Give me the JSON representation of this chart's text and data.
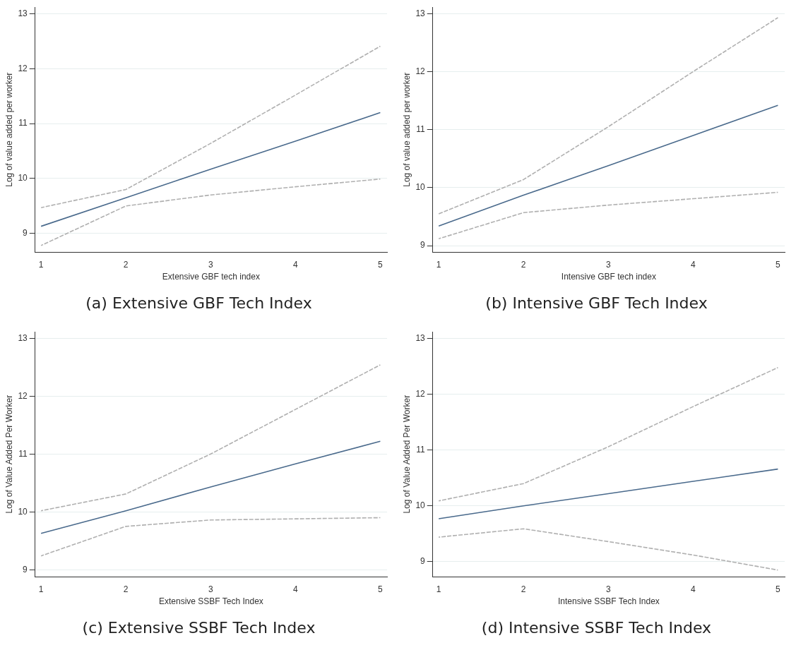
{
  "chart_data": [
    {
      "type": "line",
      "title": "(a) Extensive GBF Tech Index",
      "xlabel": "Extensive GBF tech index",
      "ylabel": "Log of value added per worker",
      "x": [
        1,
        2,
        3,
        4,
        5
      ],
      "xlim": [
        0.93,
        5.08
      ],
      "xticks": [
        1,
        2,
        3,
        4,
        5
      ],
      "ylim": [
        8.66,
        13.12
      ],
      "yticks": [
        9,
        10,
        11,
        12,
        13
      ],
      "grid": "y",
      "legend": false,
      "marker": "none",
      "series": [
        {
          "color": "#4a6a8c",
          "line_style": "solid",
          "values": [
            9.13,
            9.65,
            10.17,
            10.68,
            11.2
          ]
        },
        {
          "color": "#b0b0b0",
          "line_style": "dashed",
          "values": [
            9.47,
            9.8,
            10.64,
            11.52,
            12.41
          ]
        },
        {
          "color": "#b0b0b0",
          "line_style": "dashed",
          "values": [
            8.78,
            9.5,
            9.7,
            9.85,
            9.99
          ]
        }
      ]
    },
    {
      "type": "line",
      "title": "(b) Intensive GBF Tech Index",
      "xlabel": "Intensive GBF tech index",
      "ylabel": "Log of value added per worker",
      "x": [
        1,
        2,
        3,
        4,
        5
      ],
      "xlim": [
        0.93,
        5.08
      ],
      "xticks": [
        1,
        2,
        3,
        4,
        5
      ],
      "ylim": [
        8.89,
        13.11
      ],
      "yticks": [
        9,
        10,
        11,
        12,
        13
      ],
      "grid": "y",
      "legend": false,
      "marker": "none",
      "series": [
        {
          "color": "#4a6a8c",
          "line_style": "solid",
          "values": [
            9.34,
            9.87,
            10.38,
            10.9,
            11.42
          ]
        },
        {
          "color": "#b0b0b0",
          "line_style": "dashed",
          "values": [
            9.55,
            10.14,
            11.05,
            12.0,
            12.93
          ]
        },
        {
          "color": "#b0b0b0",
          "line_style": "dashed",
          "values": [
            9.12,
            9.57,
            9.7,
            9.81,
            9.92
          ]
        }
      ]
    },
    {
      "type": "line",
      "title": "(c) Extensive SSBF Tech Index",
      "xlabel": "Extensive SSBF Tech Index",
      "ylabel": "Log of Value Added Per Worker",
      "x": [
        1,
        2,
        3,
        4,
        5
      ],
      "xlim": [
        0.93,
        5.08
      ],
      "xticks": [
        1,
        2,
        3,
        4,
        5
      ],
      "ylim": [
        8.88,
        13.11
      ],
      "yticks": [
        9,
        10,
        11,
        12,
        13
      ],
      "grid": "y",
      "legend": false,
      "marker": "none",
      "series": [
        {
          "color": "#4a6a8c",
          "line_style": "solid",
          "values": [
            9.63,
            10.02,
            10.43,
            10.83,
            11.22
          ]
        },
        {
          "color": "#b0b0b0",
          "line_style": "dashed",
          "values": [
            10.02,
            10.31,
            11.0,
            11.77,
            12.54
          ]
        },
        {
          "color": "#b0b0b0",
          "line_style": "dashed",
          "values": [
            9.24,
            9.75,
            9.86,
            9.88,
            9.9
          ]
        }
      ]
    },
    {
      "type": "line",
      "title": "(d) Intensive SSBF Tech Index",
      "xlabel": "Intensive SSBF Tech Index",
      "ylabel": "Log of Value Added Per Worker",
      "x": [
        1,
        2,
        3,
        4,
        5
      ],
      "xlim": [
        0.93,
        5.08
      ],
      "xticks": [
        1,
        2,
        3,
        4,
        5
      ],
      "ylim": [
        8.73,
        13.12
      ],
      "yticks": [
        9,
        10,
        11,
        12,
        13
      ],
      "grid": "y",
      "legend": false,
      "marker": "none",
      "series": [
        {
          "color": "#4a6a8c",
          "line_style": "solid",
          "values": [
            9.77,
            10.0,
            10.22,
            10.44,
            10.66
          ]
        },
        {
          "color": "#b0b0b0",
          "line_style": "dashed",
          "values": [
            10.09,
            10.4,
            11.06,
            11.78,
            12.48
          ]
        },
        {
          "color": "#b0b0b0",
          "line_style": "dashed",
          "values": [
            9.44,
            9.59,
            9.36,
            9.12,
            8.85
          ]
        }
      ]
    }
  ]
}
